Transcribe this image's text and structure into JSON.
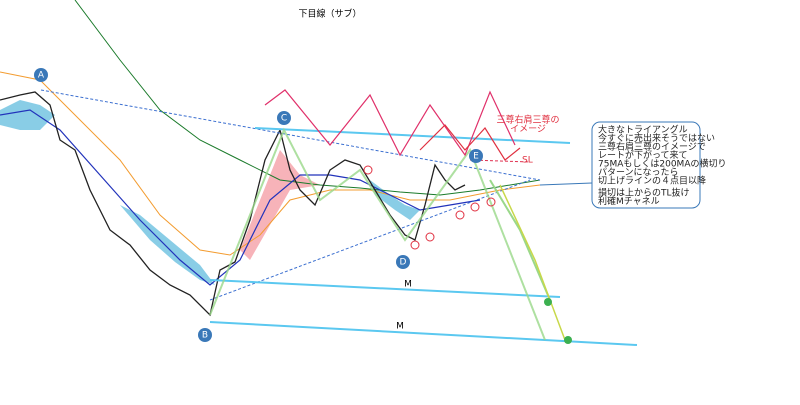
{
  "title": "下目線（サブ）",
  "points": [
    "A",
    "B",
    "C",
    "D",
    "E"
  ],
  "channel_labels": [
    "M",
    "M"
  ],
  "pattern_note": [
    "三尊右肩三尊の",
    "イメージ"
  ],
  "stop_loss": "SL",
  "note": {
    "lines": [
      "大きなトライアングル",
      "今すぐに売出来そうではない",
      "三尊右肩三尊のイメージで",
      "レートが下がって来て",
      "75MAもしくは200MAの横切り",
      "パターンになったら",
      "切上げラインの４点目以降"
    ],
    "footer": [
      "損切は上からのTL抜け",
      "利確Mチャネル"
    ]
  }
}
